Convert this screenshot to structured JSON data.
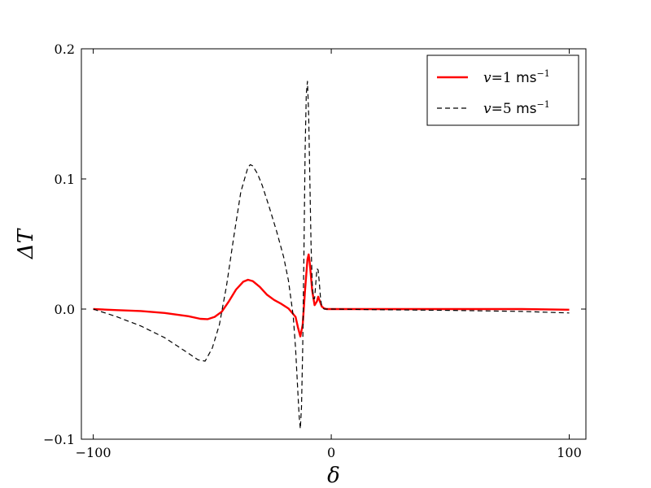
{
  "chart_data": {
    "type": "line",
    "xlabel": "δ",
    "ylabel": "ΔT",
    "xlim": [
      -105,
      107
    ],
    "ylim": [
      -0.1,
      0.2
    ],
    "xticks": [
      -100,
      0,
      100
    ],
    "xtick_labels": [
      "−100",
      "0",
      "100"
    ],
    "yticks": [
      -0.1,
      0.0,
      0.1,
      0.2
    ],
    "ytick_labels": [
      "−0.1",
      "0.0",
      "0.1",
      "0.2"
    ],
    "grid": false,
    "legend_position": "top-right",
    "series": [
      {
        "name": "v=1 ms−1",
        "legend": {
          "var": "v",
          "eq": "=1 ",
          "unit": "ms",
          "exp": "−1"
        },
        "color": "#ff0000",
        "style": "solid",
        "x": [
          -100,
          -90,
          -80,
          -70,
          -60,
          -55,
          -52,
          -49,
          -46,
          -43,
          -40,
          -37,
          -35,
          -33,
          -30,
          -27,
          -24,
          -21,
          -18,
          -15,
          -14,
          -13,
          -12,
          -11,
          -10,
          -9.5,
          -9,
          -8,
          -7,
          -6,
          -5.5,
          -5,
          -4,
          -3,
          -2,
          0,
          20,
          50,
          80,
          100
        ],
        "y": [
          0.0,
          -0.0008,
          -0.0015,
          -0.003,
          -0.0055,
          -0.0075,
          -0.0078,
          -0.006,
          -0.002,
          0.006,
          0.015,
          0.021,
          0.0225,
          0.0215,
          0.017,
          0.011,
          0.007,
          0.004,
          0.0005,
          -0.006,
          -0.014,
          -0.021,
          -0.012,
          0.015,
          0.038,
          0.042,
          0.035,
          0.014,
          0.003,
          0.006,
          0.0095,
          0.007,
          0.002,
          0.0005,
          0.0,
          0.0,
          0.0,
          0.0,
          0.0,
          -0.0005
        ]
      },
      {
        "name": "v=5 ms−1",
        "legend": {
          "var": "v",
          "eq": "=5 ",
          "unit": "ms",
          "exp": "−1"
        },
        "color": "#000000",
        "style": "dashed",
        "x": [
          -100,
          -90,
          -80,
          -70,
          -65,
          -60,
          -56,
          -53,
          -50,
          -47,
          -44,
          -41,
          -38,
          -35,
          -34,
          -33,
          -31,
          -29,
          -26,
          -23,
          -20,
          -18,
          -16,
          -15,
          -14,
          -13.5,
          -13,
          -12.5,
          -12,
          -11.5,
          -11,
          -10.5,
          -10,
          -9.5,
          -9,
          -8.5,
          -8,
          -7.5,
          -7,
          -6.5,
          -6,
          -5.5,
          -5,
          -4.5,
          -4,
          -3,
          -2,
          0,
          20,
          50,
          80,
          100
        ],
        "y": [
          0.0,
          -0.006,
          -0.013,
          -0.022,
          -0.028,
          -0.034,
          -0.039,
          -0.04,
          -0.03,
          -0.012,
          0.018,
          0.055,
          0.09,
          0.109,
          0.111,
          0.11,
          0.104,
          0.095,
          0.078,
          0.06,
          0.04,
          0.022,
          -0.005,
          -0.03,
          -0.065,
          -0.082,
          -0.092,
          -0.075,
          -0.03,
          0.04,
          0.12,
          0.165,
          0.175,
          0.15,
          0.1,
          0.05,
          0.02,
          0.008,
          0.008,
          0.02,
          0.031,
          0.03,
          0.02,
          0.008,
          0.002,
          0.0,
          0.0,
          0.0,
          -0.0005,
          -0.001,
          -0.0018,
          -0.003
        ]
      }
    ]
  }
}
